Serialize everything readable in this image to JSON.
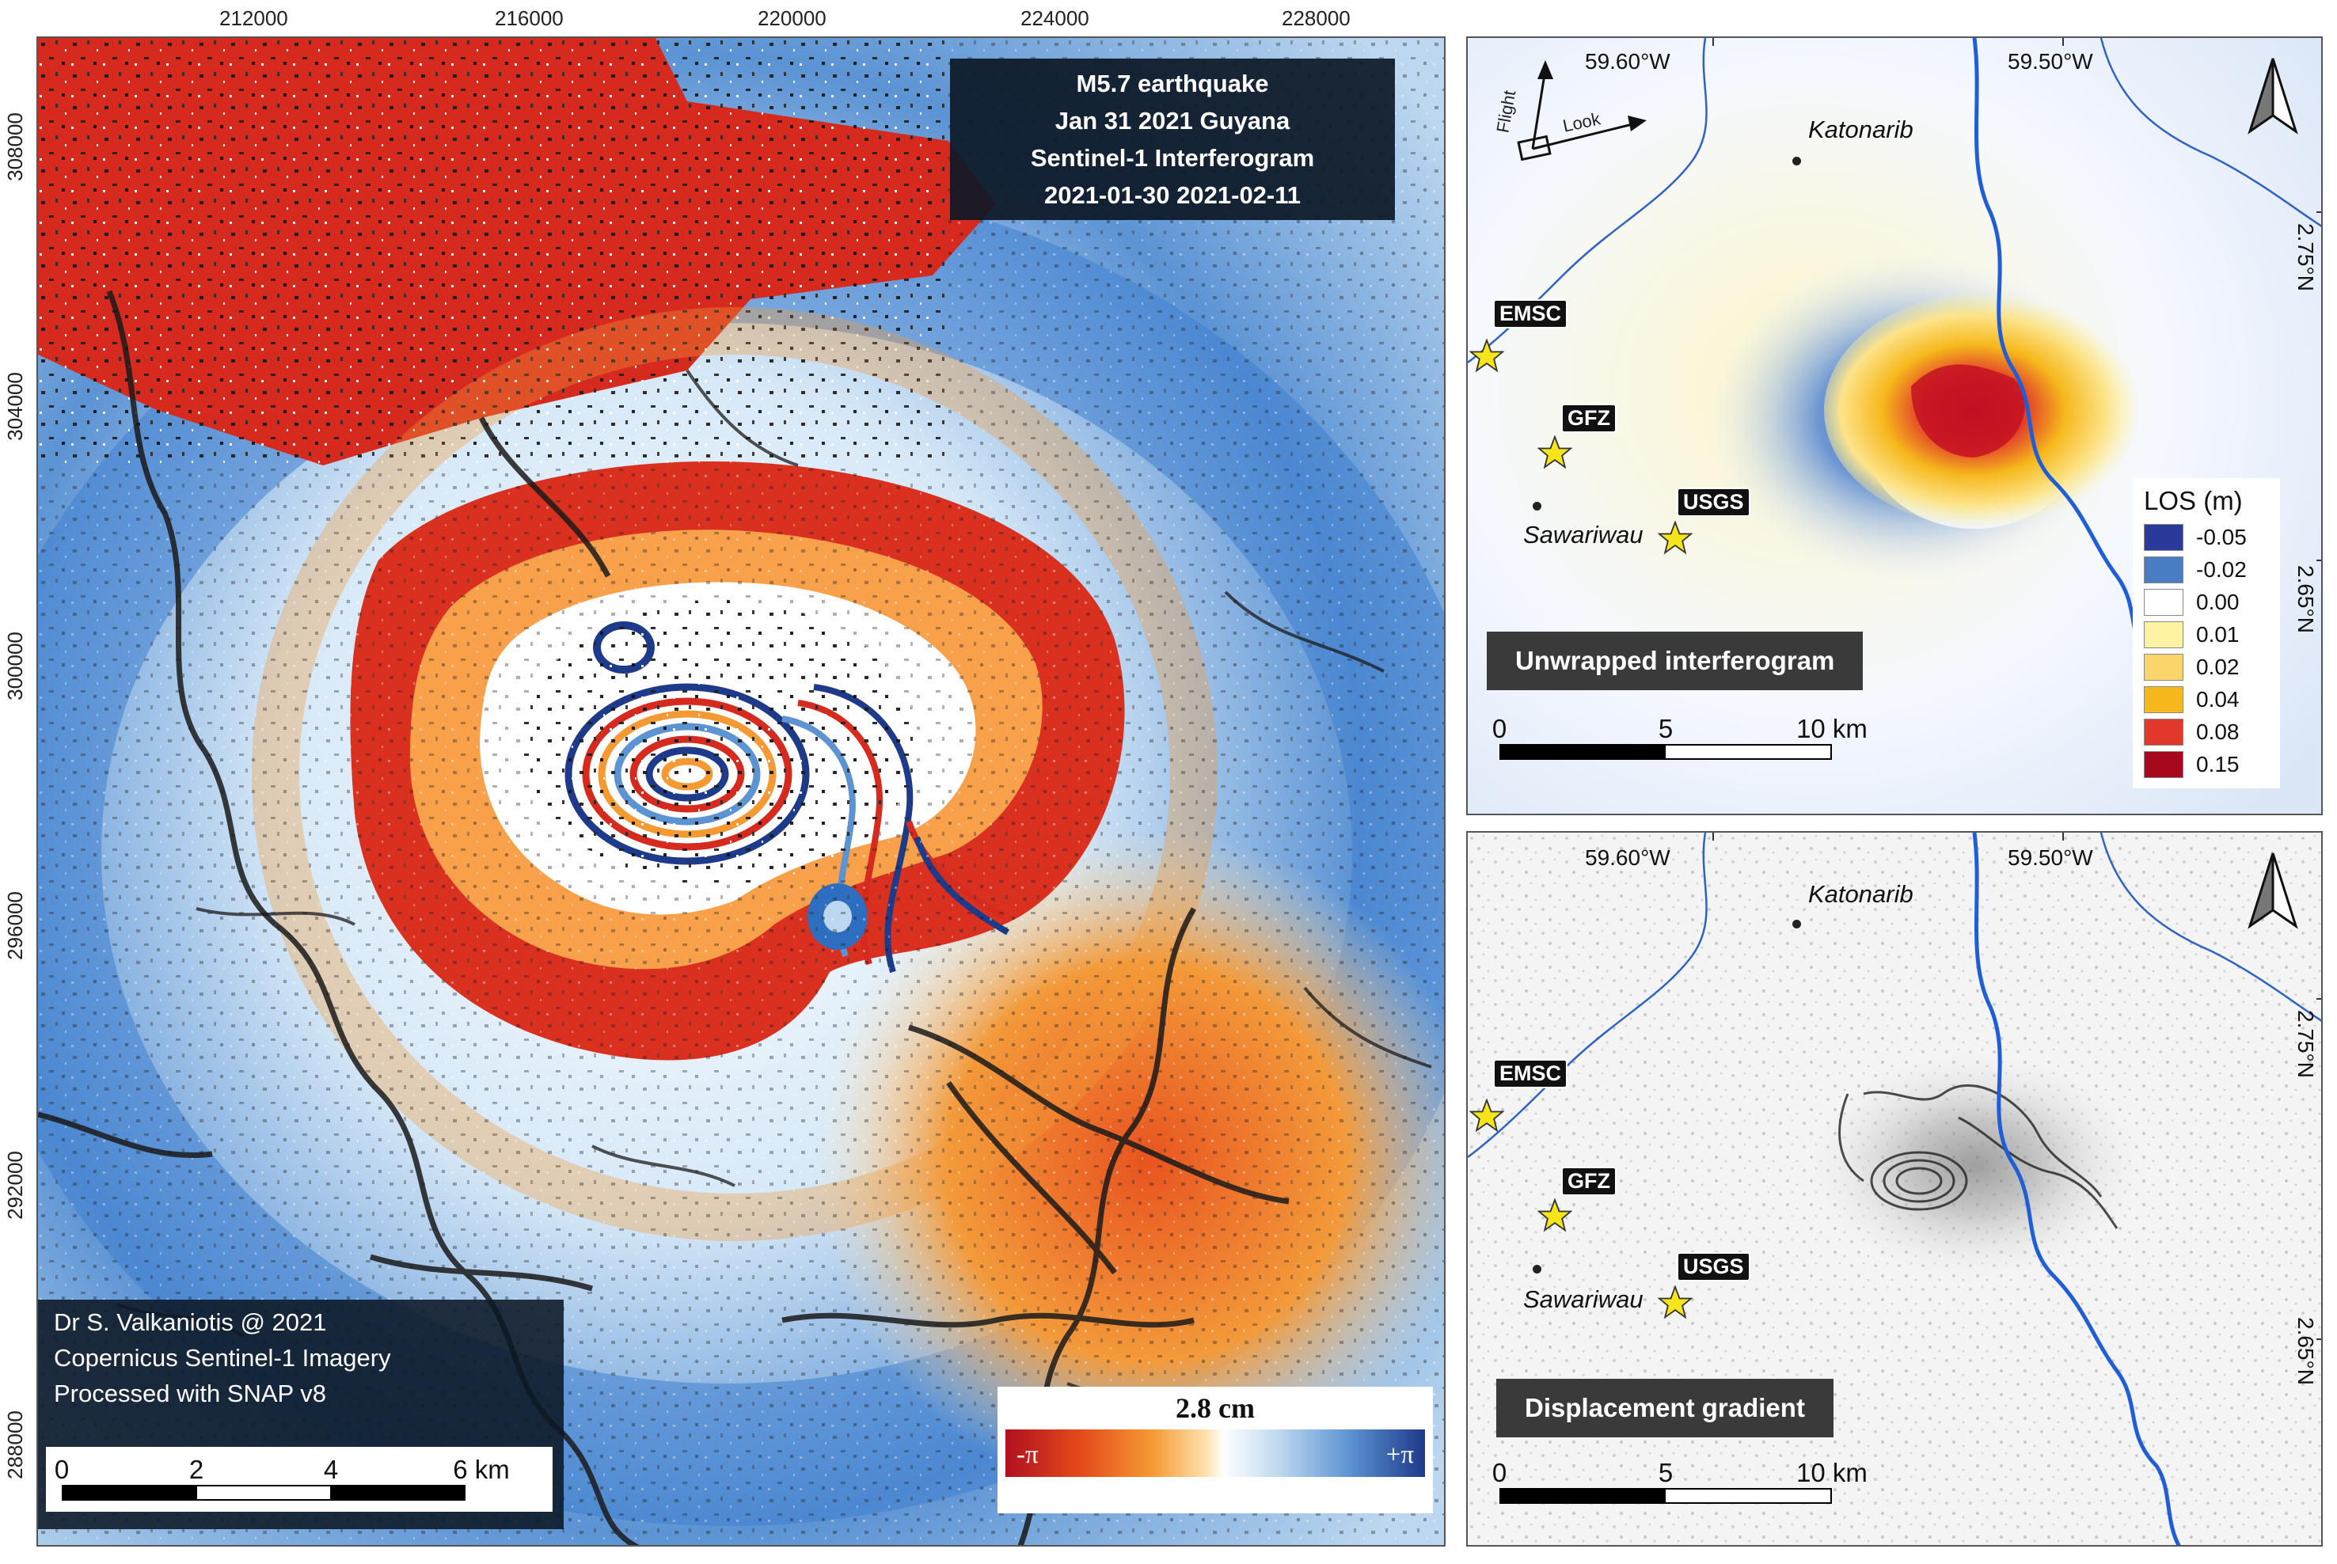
{
  "left_map": {
    "x_ticks": [
      "212000",
      "216000",
      "220000",
      "224000",
      "228000"
    ],
    "y_ticks": [
      "308000",
      "304000",
      "300000",
      "296000",
      "292000",
      "288000"
    ],
    "title_lines": [
      "M5.7 earthquake",
      "Jan 31 2021 Guyana",
      "Sentinel-1 Interferogram",
      "2021-01-30 2021-02-11"
    ],
    "credit_lines": [
      "Dr S. Valkaniotis @ 2021",
      "Copernicus Sentinel-1 Imagery",
      "Processed with SNAP v8"
    ],
    "scale_labels": [
      "0",
      "2",
      "4",
      "6 km"
    ],
    "phase_legend": {
      "title": "2.8 cm",
      "min_label": "-π",
      "max_label": "+π"
    },
    "colors": {
      "red": "#d62a1e",
      "orange": "#f39a3a",
      "white": "#ffffff",
      "lightblue": "#a9cdee",
      "blue": "#3f7fcf"
    }
  },
  "top_right_map": {
    "panel_label": "Unwrapped interferogram",
    "lon_labels": [
      "59.60°W",
      "59.50°W"
    ],
    "lat_labels": [
      "2.75°N",
      "2.65°N"
    ],
    "flight_label": "Flight",
    "look_label": "Look",
    "places": [
      "Katonarib",
      "Sawariwau"
    ],
    "agencies": [
      "EMSC",
      "GFZ",
      "USGS"
    ],
    "scale_labels": [
      "0",
      "5",
      "10 km"
    ],
    "los_legend": {
      "title": "LOS (m)",
      "items": [
        {
          "value": "-0.05",
          "color": "#2b3a9a"
        },
        {
          "value": "-0.02",
          "color": "#4a7cc4"
        },
        {
          "value": "0.00",
          "color": "#ffffff"
        },
        {
          "value": "0.01",
          "color": "#fdf3a3"
        },
        {
          "value": "0.02",
          "color": "#fbd46a"
        },
        {
          "value": "0.04",
          "color": "#f6b81c"
        },
        {
          "value": "0.08",
          "color": "#e0382a"
        },
        {
          "value": "0.15",
          "color": "#a8081e"
        }
      ]
    }
  },
  "bottom_right_map": {
    "panel_label": "Displacement gradient",
    "lon_labels": [
      "59.60°W",
      "59.50°W"
    ],
    "lat_labels": [
      "2.75°N",
      "2.65°N"
    ],
    "places": [
      "Katonarib",
      "Sawariwau"
    ],
    "agencies": [
      "EMSC",
      "GFZ",
      "USGS"
    ],
    "scale_labels": [
      "0",
      "5",
      "10 km"
    ]
  }
}
